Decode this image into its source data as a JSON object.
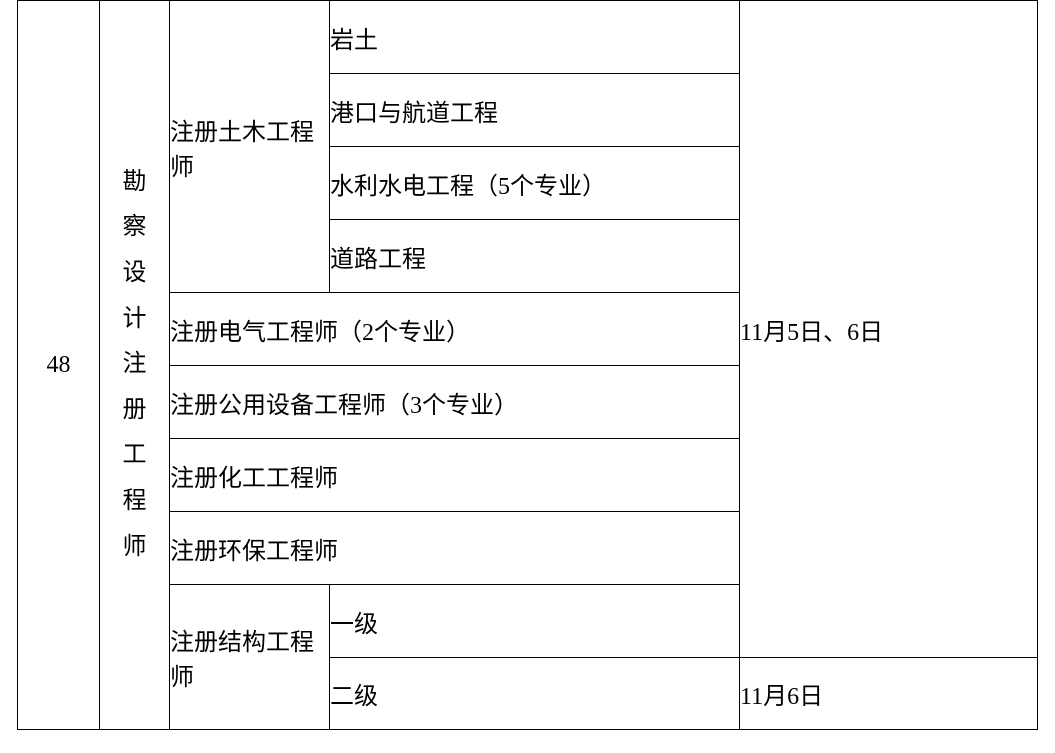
{
  "row_number": "48",
  "vertical_title": "勘察设计注册工程师",
  "civil_group": {
    "label": "注册土木工程师",
    "items": [
      "岩土",
      "港口与航道工程",
      "水利水电工程（5个专业）",
      "道路工程"
    ]
  },
  "rows_full": [
    "注册电气工程师（2个专业）",
    "注册公用设备工程师（3个专业）",
    "注册化工工程师",
    "注册环保工程师"
  ],
  "struct_group": {
    "label": "注册结构工程师",
    "items": [
      "一级",
      "二级"
    ]
  },
  "date_main": "11月5日、6日",
  "date_last": "11月6日"
}
